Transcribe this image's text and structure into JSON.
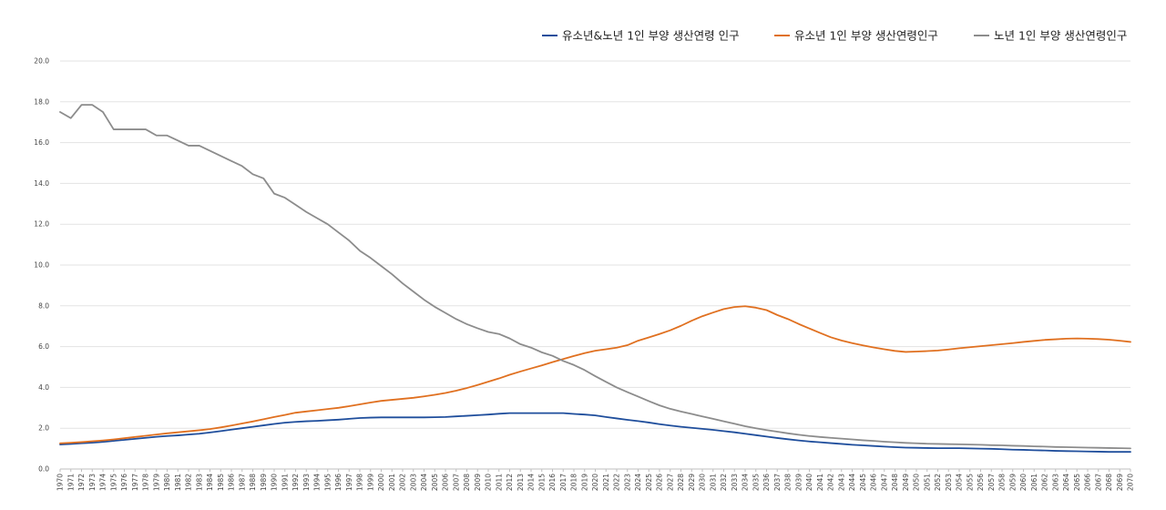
{
  "chart_data": {
    "type": "line",
    "title": "",
    "xlabel": "",
    "ylabel": "",
    "ylim": [
      0,
      20
    ],
    "yticks": [
      0,
      2,
      4,
      6,
      8,
      10,
      12,
      14,
      16,
      18,
      20
    ],
    "ytick_labels": [
      "0.0",
      "2.0",
      "4.0",
      "6.0",
      "8.0",
      "10.0",
      "12.0",
      "14.0",
      "16.0",
      "18.0",
      "20.0"
    ],
    "grid": true,
    "legend_position": "top-right",
    "x_start": 1970,
    "x_end": 2070,
    "x": [
      1970,
      1971,
      1972,
      1973,
      1974,
      1975,
      1976,
      1977,
      1978,
      1979,
      1980,
      1981,
      1982,
      1983,
      1984,
      1985,
      1986,
      1987,
      1988,
      1989,
      1990,
      1991,
      1992,
      1993,
      1994,
      1995,
      1996,
      1997,
      1998,
      1999,
      2000,
      2001,
      2002,
      2003,
      2004,
      2005,
      2006,
      2007,
      2008,
      2009,
      2010,
      2011,
      2012,
      2013,
      2014,
      2015,
      2016,
      2017,
      2018,
      2019,
      2020,
      2021,
      2022,
      2023,
      2024,
      2025,
      2026,
      2027,
      2028,
      2029,
      2030,
      2031,
      2032,
      2033,
      2034,
      2035,
      2036,
      2037,
      2038,
      2039,
      2040,
      2041,
      2042,
      2043,
      2044,
      2045,
      2046,
      2047,
      2048,
      2049,
      2050,
      2051,
      2052,
      2053,
      2054,
      2055,
      2056,
      2057,
      2058,
      2059,
      2060,
      2061,
      2062,
      2063,
      2064,
      2065,
      2066,
      2067,
      2068,
      2069,
      2070
    ],
    "x_labels": [
      "1970",
      "1971",
      "1972",
      "1973",
      "1974",
      "1975",
      "1976",
      "1977",
      "1978",
      "1979",
      "1980",
      "1981",
      "1982",
      "1983",
      "1984",
      "1985",
      "1986",
      "1987",
      "1988",
      "1989",
      "1990",
      "1991",
      "1992",
      "1993",
      "1994",
      "1995",
      "1996",
      "1997",
      "1998",
      "1999",
      "2000",
      "2001",
      "2002",
      "2003",
      "2004",
      "2005",
      "2006",
      "2007",
      "2008",
      "2009",
      "2010",
      "2011",
      "2012",
      "2013",
      "2014",
      "2015",
      "2016",
      "2017",
      "2018",
      "2019",
      "2020",
      "2021",
      "2022",
      "2023",
      "2024",
      "2025",
      "2026",
      "2027",
      "2028",
      "2029",
      "2030",
      "2031",
      "2032",
      "2033",
      "2034",
      "2035",
      "2036",
      "2037",
      "2038",
      "2039",
      "2040",
      "2041",
      "2042",
      "2043",
      "2044",
      "2045",
      "2046",
      "2047",
      "2048",
      "2049",
      "2050",
      "2051",
      "2052",
      "2053",
      "2054",
      "2055",
      "2056",
      "2057",
      "2058",
      "2059",
      "2060",
      "2061",
      "2062",
      "2063",
      "2064",
      "2065",
      "2066",
      "2067",
      "2068",
      "2069",
      "2070"
    ],
    "series": [
      {
        "name": "유소년&노년 1인 부양 생산연령 인구",
        "color": "#1f4e9c",
        "values": [
          1.2,
          1.23,
          1.26,
          1.29,
          1.33,
          1.38,
          1.43,
          1.48,
          1.53,
          1.58,
          1.62,
          1.65,
          1.69,
          1.73,
          1.79,
          1.86,
          1.93,
          2.0,
          2.07,
          2.14,
          2.21,
          2.27,
          2.31,
          2.34,
          2.36,
          2.39,
          2.42,
          2.46,
          2.5,
          2.52,
          2.53,
          2.53,
          2.53,
          2.53,
          2.53,
          2.54,
          2.55,
          2.58,
          2.61,
          2.64,
          2.67,
          2.71,
          2.74,
          2.74,
          2.74,
          2.74,
          2.74,
          2.74,
          2.7,
          2.67,
          2.63,
          2.55,
          2.48,
          2.41,
          2.35,
          2.28,
          2.2,
          2.13,
          2.07,
          2.02,
          1.97,
          1.92,
          1.86,
          1.8,
          1.73,
          1.66,
          1.59,
          1.52,
          1.46,
          1.4,
          1.35,
          1.31,
          1.27,
          1.23,
          1.19,
          1.16,
          1.13,
          1.1,
          1.07,
          1.05,
          1.04,
          1.03,
          1.02,
          1.02,
          1.02,
          1.01,
          1.0,
          0.99,
          0.97,
          0.95,
          0.94,
          0.92,
          0.91,
          0.89,
          0.88,
          0.87,
          0.86,
          0.85,
          0.84,
          0.84,
          0.84
        ]
      },
      {
        "name": "유소년 1인 부양 생산연령인구",
        "color": "#e07020",
        "values": [
          1.26,
          1.29,
          1.32,
          1.36,
          1.4,
          1.45,
          1.51,
          1.57,
          1.63,
          1.69,
          1.75,
          1.8,
          1.85,
          1.9,
          1.96,
          2.04,
          2.13,
          2.23,
          2.33,
          2.44,
          2.55,
          2.65,
          2.76,
          2.82,
          2.88,
          2.94,
          3.0,
          3.08,
          3.17,
          3.26,
          3.34,
          3.39,
          3.44,
          3.49,
          3.56,
          3.64,
          3.73,
          3.84,
          3.97,
          4.12,
          4.28,
          4.44,
          4.62,
          4.78,
          4.93,
          5.08,
          5.24,
          5.39,
          5.54,
          5.68,
          5.8,
          5.87,
          5.95,
          6.07,
          6.29,
          6.45,
          6.62,
          6.8,
          7.02,
          7.27,
          7.49,
          7.67,
          7.84,
          7.94,
          7.98,
          7.91,
          7.79,
          7.55,
          7.35,
          7.11,
          6.89,
          6.67,
          6.46,
          6.3,
          6.17,
          6.06,
          5.96,
          5.87,
          5.79,
          5.74,
          5.76,
          5.78,
          5.81,
          5.86,
          5.92,
          5.97,
          6.02,
          6.07,
          6.12,
          6.17,
          6.23,
          6.28,
          6.33,
          6.36,
          6.39,
          6.4,
          6.39,
          6.37,
          6.34,
          6.29,
          6.23
        ]
      },
      {
        "name": "노년 1인 부양 생산연령인구",
        "color": "#8c8c8c",
        "values": [
          17.5,
          17.2,
          17.85,
          17.85,
          17.5,
          16.65,
          16.65,
          16.65,
          16.65,
          16.35,
          16.35,
          16.1,
          15.85,
          15.85,
          15.6,
          15.35,
          15.1,
          14.85,
          14.45,
          14.25,
          13.5,
          13.3,
          12.95,
          12.6,
          12.3,
          12.0,
          11.6,
          11.2,
          10.7,
          10.35,
          9.95,
          9.55,
          9.1,
          8.7,
          8.3,
          7.95,
          7.65,
          7.35,
          7.1,
          6.9,
          6.72,
          6.62,
          6.4,
          6.12,
          5.95,
          5.72,
          5.55,
          5.3,
          5.1,
          4.85,
          4.55,
          4.27,
          4.0,
          3.77,
          3.55,
          3.33,
          3.12,
          2.95,
          2.82,
          2.7,
          2.58,
          2.46,
          2.34,
          2.22,
          2.1,
          2.0,
          1.91,
          1.83,
          1.75,
          1.68,
          1.62,
          1.57,
          1.53,
          1.49,
          1.45,
          1.41,
          1.38,
          1.34,
          1.31,
          1.28,
          1.26,
          1.24,
          1.23,
          1.22,
          1.21,
          1.2,
          1.19,
          1.17,
          1.16,
          1.14,
          1.13,
          1.11,
          1.1,
          1.08,
          1.07,
          1.06,
          1.05,
          1.04,
          1.03,
          1.02,
          1.01
        ]
      }
    ]
  }
}
